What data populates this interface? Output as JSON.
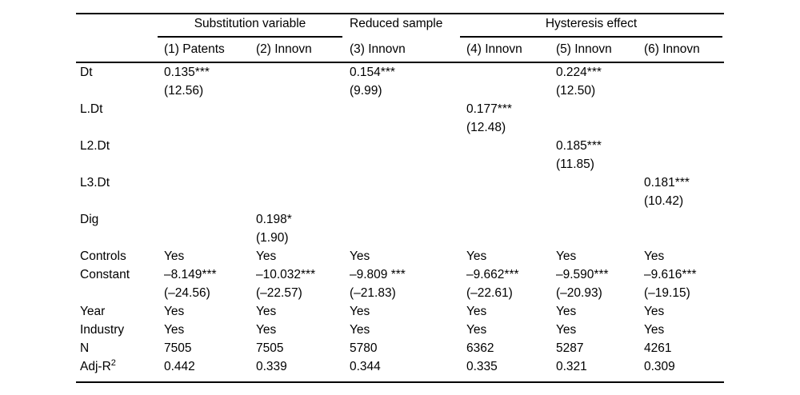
{
  "page": {
    "background_color": "#ffffff",
    "text_color": "#000000",
    "rule_color": "#000000"
  },
  "table": {
    "groups": [
      {
        "label": "Substitution variable",
        "span": 2,
        "underlined": true
      },
      {
        "label": "Reduced sample",
        "span": 1,
        "underlined": false
      },
      {
        "label": "Hysteresis effect",
        "span": 3,
        "underlined": true
      }
    ],
    "columns": [
      "(1) Patents",
      "(2) Innovn",
      "(3) Innovn",
      "(4) Innovn",
      "(5) Innovn",
      "(6) Innovn"
    ],
    "rows": [
      {
        "label": "Dt",
        "cells": [
          [
            "0.135***",
            "(12.56)"
          ],
          [
            "",
            ""
          ],
          [
            "0.154***",
            "(9.99)"
          ],
          [
            "",
            ""
          ],
          [
            "0.224***",
            "(12.50)"
          ],
          [
            "",
            ""
          ]
        ]
      },
      {
        "label": "L.Dt",
        "cells": [
          [
            "",
            ""
          ],
          [
            "",
            ""
          ],
          [
            "",
            ""
          ],
          [
            "0.177***",
            "(12.48)"
          ],
          [
            "",
            ""
          ],
          [
            "",
            ""
          ]
        ]
      },
      {
        "label": "L2.Dt",
        "cells": [
          [
            "",
            ""
          ],
          [
            "",
            ""
          ],
          [
            "",
            ""
          ],
          [
            "",
            ""
          ],
          [
            "0.185***",
            "(11.85)"
          ],
          [
            "",
            ""
          ]
        ]
      },
      {
        "label": "L3.Dt",
        "cells": [
          [
            "",
            ""
          ],
          [
            "",
            ""
          ],
          [
            "",
            ""
          ],
          [
            "",
            ""
          ],
          [
            "",
            ""
          ],
          [
            "0.181***",
            "(10.42)"
          ]
        ]
      },
      {
        "label": "Dig",
        "cells": [
          [
            "",
            ""
          ],
          [
            "0.198*",
            "(1.90)"
          ],
          [
            "",
            ""
          ],
          [
            "",
            ""
          ],
          [
            "",
            ""
          ],
          [
            "",
            ""
          ]
        ]
      },
      {
        "label": "Controls",
        "cells": [
          [
            "Yes"
          ],
          [
            "Yes"
          ],
          [
            "Yes"
          ],
          [
            "Yes"
          ],
          [
            "Yes"
          ],
          [
            "Yes"
          ]
        ]
      },
      {
        "label": "Constant",
        "cells": [
          [
            "–8.149***",
            "(–24.56)"
          ],
          [
            "–10.032***",
            "(–22.57)"
          ],
          [
            "–9.809 ***",
            "(–21.83)"
          ],
          [
            "–9.662***",
            "(–22.61)"
          ],
          [
            "–9.590***",
            "(–20.93)"
          ],
          [
            "–9.616***",
            "(–19.15)"
          ]
        ]
      },
      {
        "label": "Year",
        "cells": [
          [
            "Yes"
          ],
          [
            "Yes"
          ],
          [
            "Yes"
          ],
          [
            "Yes"
          ],
          [
            "Yes"
          ],
          [
            "Yes"
          ]
        ]
      },
      {
        "label": "Industry",
        "cells": [
          [
            "Yes"
          ],
          [
            "Yes"
          ],
          [
            "Yes"
          ],
          [
            "Yes"
          ],
          [
            "Yes"
          ],
          [
            "Yes"
          ]
        ]
      },
      {
        "label": "N",
        "cells": [
          [
            "7505"
          ],
          [
            "7505"
          ],
          [
            "5780"
          ],
          [
            "6362"
          ],
          [
            "5287"
          ],
          [
            "4261"
          ]
        ]
      },
      {
        "label": "Adj-R",
        "label_sup": "2",
        "cells": [
          [
            "0.442"
          ],
          [
            "0.339"
          ],
          [
            "0.344"
          ],
          [
            "0.335"
          ],
          [
            "0.321"
          ],
          [
            "0.309"
          ]
        ]
      }
    ]
  }
}
